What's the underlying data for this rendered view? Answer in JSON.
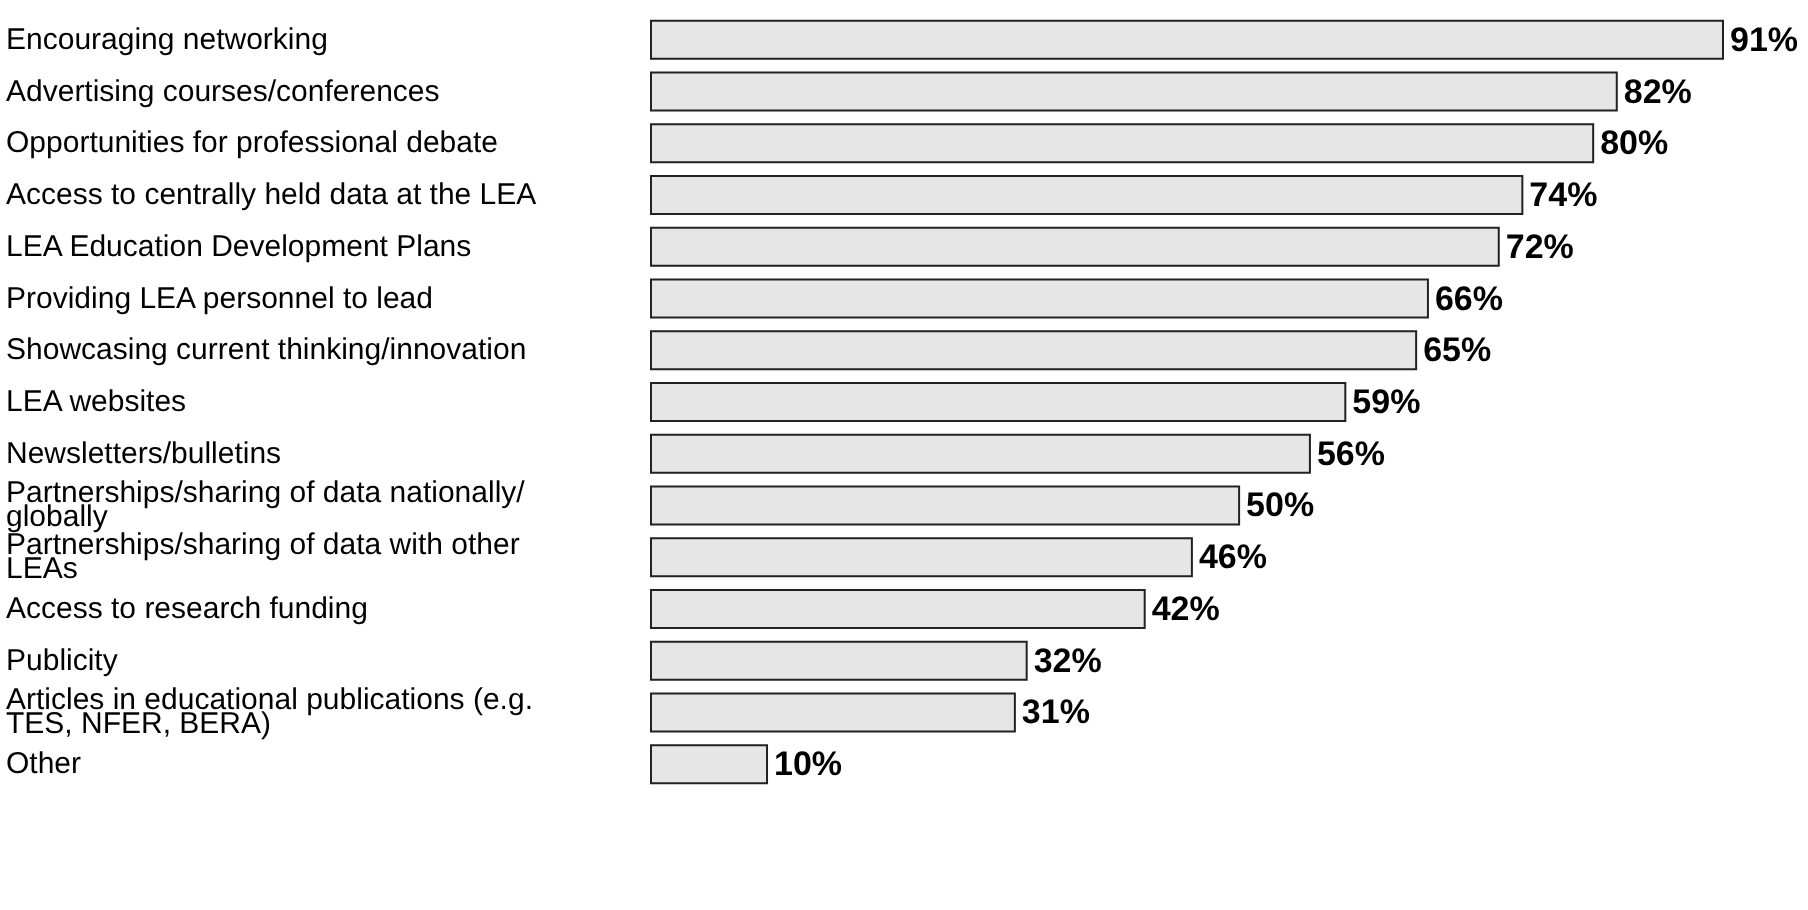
{
  "chart_data": {
    "type": "bar",
    "orientation": "horizontal",
    "data_labels": true,
    "categories": [
      "Encouraging networking",
      "Advertising courses/conferences",
      "Opportunities for professional debate",
      "Access to centrally held data at the LEA",
      "LEA Education Development Plans",
      "Providing LEA personnel to lead",
      "Showcasing current thinking/innovation",
      "LEA websites",
      "Newsletters/bulletins",
      "Partnerships/sharing of data nationally/ globally",
      "Partnerships/sharing of data with other LEAs",
      "Access to research funding",
      "Publicity",
      "Articles in educational publications (e.g. TES, NFER, BERA)",
      "Other"
    ],
    "values": [
      91,
      82,
      80,
      74,
      72,
      66,
      65,
      59,
      56,
      50,
      46,
      42,
      32,
      31,
      10
    ],
    "value_labels": [
      "91%",
      "82%",
      "80%",
      "74%",
      "72%",
      "66%",
      "65%",
      "59%",
      "56%",
      "50%",
      "46%",
      "42%",
      "32%",
      "31%",
      "10%"
    ],
    "color": "#e6e6e6"
  }
}
